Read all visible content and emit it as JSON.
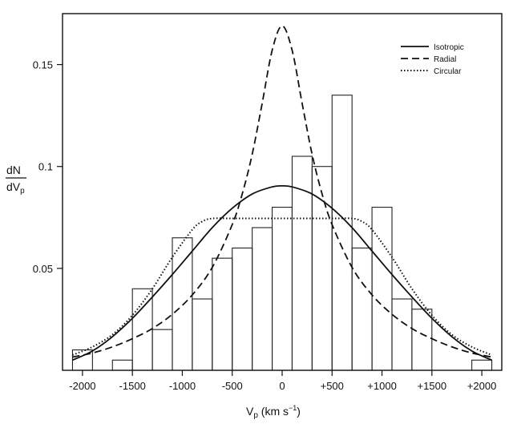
{
  "chart_data": {
    "type": "line",
    "title": "",
    "xlabel": "V_p (km s^-1)",
    "ylabel": "dN/dV_p",
    "xlim": [
      -2200,
      2200
    ],
    "ylim": [
      0,
      0.175
    ],
    "grid": false,
    "legend_position": "top-right",
    "axis_text": {
      "x_main": "V",
      "x_sub": "p",
      "x_units": " (km s",
      "x_units_sup": "−1",
      "x_units_close": ")",
      "y_num": "dN",
      "y_den": "dV",
      "y_den_sub": "p"
    },
    "x_ticks": [
      {
        "value": -2000,
        "label": "-2000"
      },
      {
        "value": -1500,
        "label": "-1500"
      },
      {
        "value": -1000,
        "label": "-1000"
      },
      {
        "value": -500,
        "label": "-500"
      },
      {
        "value": 0,
        "label": "0"
      },
      {
        "value": 500,
        "label": "+500"
      },
      {
        "value": 1000,
        "label": "+1000"
      },
      {
        "value": 1500,
        "label": "+1500"
      },
      {
        "value": 2000,
        "label": "+2000"
      }
    ],
    "y_ticks": [
      {
        "value": 0.05,
        "label": "0.05"
      },
      {
        "value": 0.1,
        "label": "0.1"
      },
      {
        "value": 0.15,
        "label": "0.15"
      }
    ],
    "histogram": {
      "bin_edges": [
        -2100,
        -1900,
        -1700,
        -1500,
        -1300,
        -1100,
        -900,
        -700,
        -500,
        -300,
        -100,
        100,
        300,
        500,
        700,
        900,
        1100,
        1300,
        1500,
        1700,
        1900,
        2100
      ],
      "values": [
        0.01,
        0.0,
        0.005,
        0.04,
        0.02,
        0.065,
        0.035,
        0.055,
        0.06,
        0.07,
        0.08,
        0.105,
        0.1,
        0.135,
        0.06,
        0.08,
        0.035,
        0.03,
        0.0,
        0.0,
        0.005
      ]
    },
    "series": [
      {
        "name": "Isotropic",
        "style": "solid",
        "x": [
          -2100,
          -1900,
          -1700,
          -1500,
          -1300,
          -1100,
          -900,
          -700,
          -500,
          -300,
          -100,
          0,
          100,
          300,
          500,
          700,
          900,
          1100,
          1300,
          1500,
          1700,
          1900,
          2100
        ],
        "y": [
          0.005,
          0.0095,
          0.0165,
          0.0255,
          0.036,
          0.047,
          0.0585,
          0.07,
          0.0795,
          0.0865,
          0.09,
          0.0905,
          0.09,
          0.0865,
          0.0795,
          0.07,
          0.0585,
          0.047,
          0.036,
          0.0255,
          0.0165,
          0.0095,
          0.005
        ]
      },
      {
        "name": "Radial",
        "style": "dashed",
        "x": [
          -2100,
          -1900,
          -1700,
          -1500,
          -1300,
          -1100,
          -900,
          -700,
          -500,
          -400,
          -300,
          -200,
          -100,
          0,
          100,
          200,
          300,
          400,
          500,
          700,
          900,
          1100,
          1300,
          1500,
          1700,
          1900,
          2100
        ],
        "y": [
          0.0065,
          0.0085,
          0.0115,
          0.0155,
          0.0205,
          0.0275,
          0.037,
          0.0505,
          0.0715,
          0.0865,
          0.106,
          0.131,
          0.157,
          0.169,
          0.157,
          0.131,
          0.106,
          0.0865,
          0.0715,
          0.0505,
          0.037,
          0.0275,
          0.0205,
          0.0155,
          0.0115,
          0.0085,
          0.0065
        ]
      },
      {
        "name": "Circular",
        "style": "dotted",
        "x": [
          -2100,
          -1900,
          -1700,
          -1500,
          -1300,
          -1100,
          -900,
          -800,
          -700,
          -500,
          -300,
          -100,
          0,
          100,
          300,
          500,
          700,
          800,
          900,
          1100,
          1300,
          1500,
          1700,
          1900,
          2100
        ],
        "y": [
          0.0075,
          0.0115,
          0.0175,
          0.027,
          0.04,
          0.0555,
          0.069,
          0.073,
          0.0745,
          0.0745,
          0.0745,
          0.0745,
          0.0745,
          0.0745,
          0.0745,
          0.0745,
          0.0745,
          0.073,
          0.069,
          0.0555,
          0.04,
          0.027,
          0.0175,
          0.0115,
          0.0075
        ]
      }
    ]
  }
}
